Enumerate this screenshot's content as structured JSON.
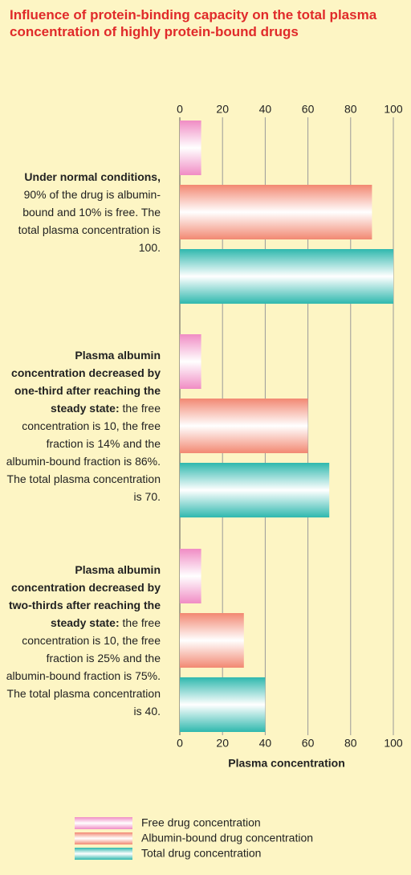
{
  "chart_data": {
    "type": "barh",
    "title": "Influence of protein-binding capacity on the total plasma concentration of highly protein-bound drugs",
    "xlabel": "Plasma concentration",
    "categories": [
      {
        "bold": "Under normal conditions,",
        "text": "90% of the drug is albumin-bound and 10% is free. The total plasma concentration is 100."
      },
      {
        "bold": "Plasma albumin concentration decreased by one-third after reaching the steady state:",
        "text": "the free concentration is 10, the free fraction is 14% and the albumin-bound fraction is 86%. The total plasma concentration is 70."
      },
      {
        "bold": "Plasma albumin concentration decreased by two-thirds after reaching the steady state:",
        "text": "the free concentration is 10, the free fraction is 25% and the albumin-bound fraction is 75%. The total plasma concentration is 40."
      }
    ],
    "series": [
      {
        "name": "Free drug concentration",
        "color": "#f08cc4",
        "values": [
          10,
          10,
          10
        ]
      },
      {
        "name": "Albumin-bound drug concentration",
        "color": "#f28872",
        "values": [
          90,
          60,
          30
        ]
      },
      {
        "name": "Total drug concentration",
        "color": "#2fb8ae",
        "values": [
          100,
          70,
          40
        ]
      }
    ],
    "xlim": [
      0,
      100
    ],
    "xticks": [
      0,
      20,
      40,
      60,
      80,
      100
    ],
    "grid": true
  }
}
